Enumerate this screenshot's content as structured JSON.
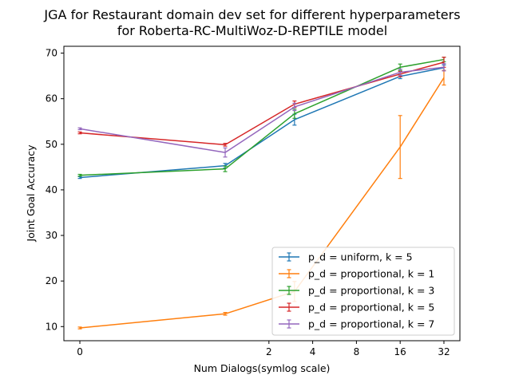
{
  "chart_data": {
    "type": "line",
    "title": "JGA for Restaurant domain dev set for different hyperparameters",
    "subtitle": "for Roberta-RC-MultiWoz-D-REPTILE model",
    "xlabel": "Num Dialogs(symlog scale)",
    "ylabel": "Joint Goal Accuracy",
    "xscale": "symlog",
    "x": [
      0,
      1,
      3,
      16,
      32
    ],
    "x_ticks": [
      0,
      2,
      4,
      8,
      16,
      32
    ],
    "x_tick_labels": [
      "0",
      "2",
      "4",
      "8",
      "16",
      "32"
    ],
    "y_ticks": [
      10,
      20,
      30,
      40,
      50,
      60,
      70
    ],
    "y_tick_labels": [
      "10",
      "20",
      "30",
      "40",
      "50",
      "60",
      "70"
    ],
    "legend_position": "lower-right",
    "series": [
      {
        "name": "p_d = uniform, k = 5",
        "color": "#1f77b4",
        "values": [
          42.7,
          45.3,
          55.4,
          64.9,
          66.8
        ],
        "errors": [
          0.2,
          0.5,
          1.2,
          0.5,
          0.6
        ]
      },
      {
        "name": "p_d = proportional, k = 1",
        "color": "#ff7f0e",
        "values": [
          9.7,
          12.8,
          17.7,
          49.4,
          64.6
        ],
        "errors": [
          0.2,
          0.3,
          2.2,
          6.9,
          1.6
        ]
      },
      {
        "name": "p_d = proportional, k = 3",
        "color": "#2ca02c",
        "values": [
          43.2,
          44.6,
          56.7,
          66.9,
          68.6
        ],
        "errors": [
          0.2,
          0.6,
          1.0,
          0.7,
          0.5
        ]
      },
      {
        "name": "p_d = proportional, k = 5",
        "color": "#d62728",
        "values": [
          52.5,
          49.9,
          58.8,
          65.4,
          68.0
        ],
        "errors": [
          0.2,
          0.3,
          0.7,
          0.6,
          1.1
        ]
      },
      {
        "name": "p_d = proportional, k = 7",
        "color": "#9467bd",
        "values": [
          53.4,
          48.2,
          58.2,
          65.8,
          66.9
        ],
        "errors": [
          0.2,
          1.0,
          0.8,
          0.7,
          0.8
        ]
      }
    ]
  }
}
